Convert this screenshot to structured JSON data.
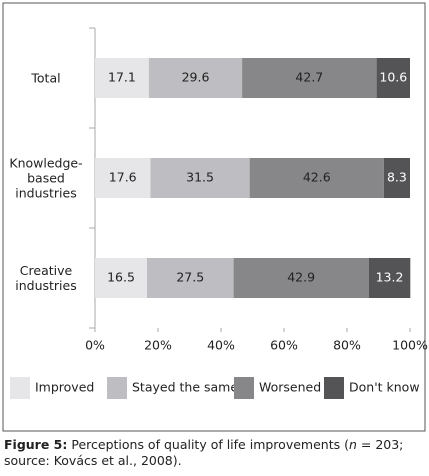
{
  "chart_data": {
    "type": "bar",
    "orientation": "horizontal",
    "stacked": true,
    "categories": [
      "Total",
      "Knowledge-based industries",
      "Creative industries"
    ],
    "series": [
      {
        "name": "Improved",
        "color": "#e6e6e8",
        "values": [
          17.1,
          17.6,
          16.5
        ]
      },
      {
        "name": "Stayed the same",
        "color": "#bdbdc2",
        "values": [
          29.6,
          31.5,
          27.5
        ]
      },
      {
        "name": "Worsened",
        "color": "#87878a",
        "values": [
          42.7,
          42.6,
          42.9
        ]
      },
      {
        "name": "Don't know",
        "color": "#545457",
        "values": [
          10.6,
          8.3,
          13.2
        ]
      }
    ],
    "xlim": [
      0,
      100
    ],
    "xticks": [
      {
        "value": 0,
        "label": "0%"
      },
      {
        "value": 20,
        "label": "20%"
      },
      {
        "value": 40,
        "label": "40%"
      },
      {
        "value": 60,
        "label": "60%"
      },
      {
        "value": 80,
        "label": "80%"
      },
      {
        "value": 100,
        "label": "100%"
      }
    ],
    "legend": "bottom",
    "caption": {
      "label": "Figure 5:",
      "parts": [
        "Perceptions of quality of life improvements (",
        "n",
        " = 203; source: Kovács et al., 2008)."
      ]
    }
  }
}
